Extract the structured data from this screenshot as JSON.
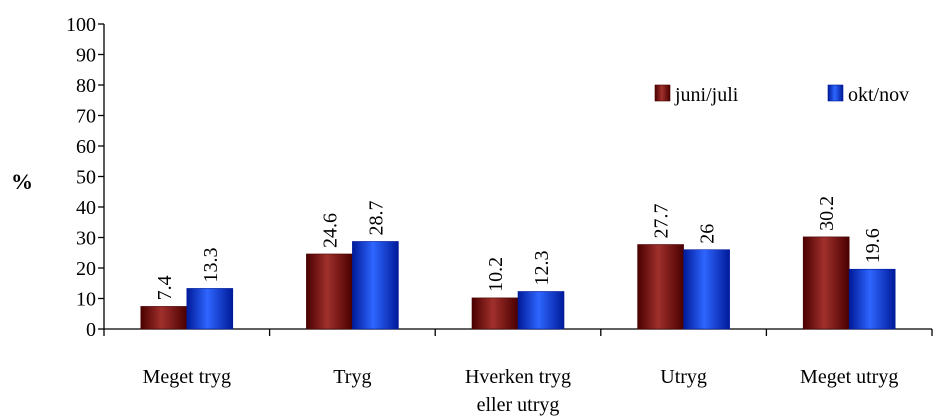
{
  "chart_data": {
    "type": "bar",
    "ylabel": "%",
    "ylim": [
      0,
      100
    ],
    "yticks": [
      0,
      10,
      20,
      30,
      40,
      50,
      60,
      70,
      80,
      90,
      100
    ],
    "categories": [
      [
        "Meget tryg"
      ],
      [
        "Tryg"
      ],
      [
        "Hverken tryg",
        "eller utryg"
      ],
      [
        "Utryg"
      ],
      [
        "Meget utryg"
      ]
    ],
    "series": [
      {
        "name": "juni/juli",
        "values": [
          7.4,
          24.6,
          10.2,
          27.7,
          30.2
        ],
        "color": "#800000",
        "color_light": "#a0302c",
        "color_dark": "#4a0000"
      },
      {
        "name": "okt/nov",
        "values": [
          13.3,
          28.7,
          12.3,
          26,
          19.6
        ],
        "color": "#0033ff",
        "color_light": "#2e66ff",
        "color_dark": "#001a99"
      }
    ],
    "legend_position": "top-right",
    "grid": false
  }
}
